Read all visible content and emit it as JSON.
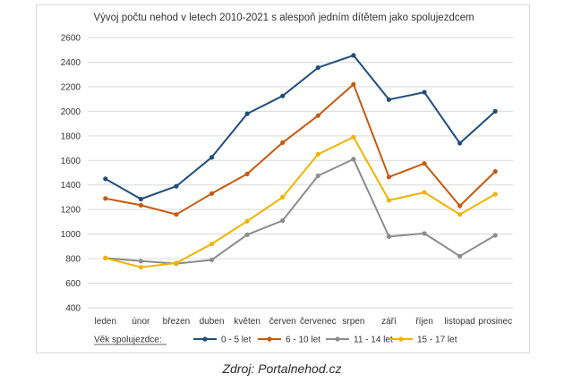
{
  "chart_data": {
    "type": "line",
    "title": "Vývoj počtu nehod v letech 2010-2021 s alespoň jedním dítětem jako spolujezdcem",
    "categories": [
      "leden",
      "únor",
      "březen",
      "duben",
      "květen",
      "červen",
      "červenec",
      "srpen",
      "září",
      "říjen",
      "listopad",
      "prosinec"
    ],
    "ylim": [
      400,
      2600
    ],
    "yticks": [
      400,
      600,
      800,
      1000,
      1200,
      1400,
      1600,
      1800,
      2000,
      2200,
      2400,
      2600
    ],
    "grid": true,
    "legend_title": "Věk spolujezdce:",
    "legend_position": "bottom",
    "series": [
      {
        "name": "0 - 5 let",
        "color": "#1f4e79",
        "values": [
          1450,
          1285,
          1390,
          1625,
          1980,
          2125,
          2355,
          2455,
          2095,
          2155,
          1740,
          2000
        ]
      },
      {
        "name": "6 - 10 let",
        "color": "#c55a11",
        "values": [
          1290,
          1235,
          1160,
          1330,
          1490,
          1745,
          1965,
          2220,
          1465,
          1575,
          1230,
          1510
        ]
      },
      {
        "name": "11 - 14 let",
        "color": "#8c8c8c",
        "values": [
          805,
          780,
          760,
          790,
          995,
          1110,
          1475,
          1610,
          980,
          1005,
          820,
          990
        ]
      },
      {
        "name": "15 - 17 let",
        "color": "#f0b400",
        "values": [
          805,
          730,
          765,
          920,
          1105,
          1300,
          1650,
          1790,
          1275,
          1340,
          1160,
          1325
        ]
      }
    ]
  },
  "source_text": "Zdroj: Portalnehod.cz"
}
